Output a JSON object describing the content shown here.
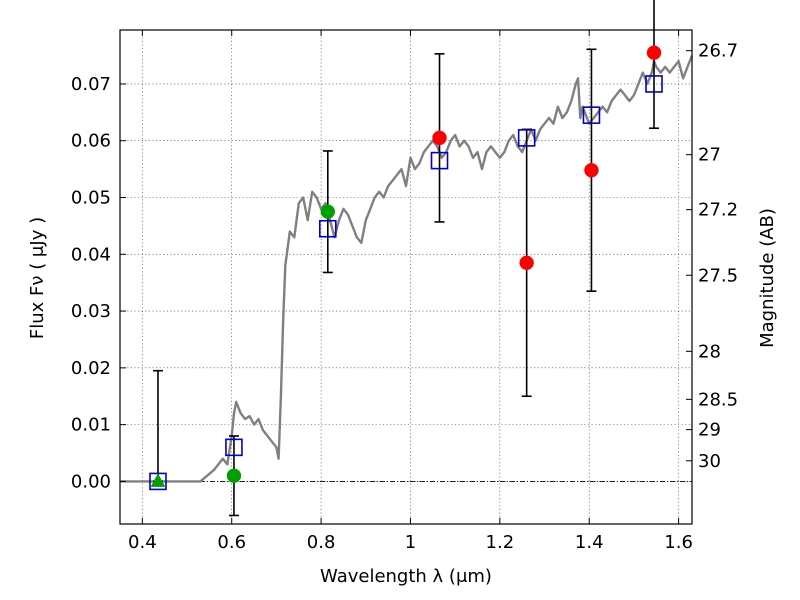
{
  "chart_data": {
    "type": "scatter",
    "title": "",
    "xlabel": "Wavelength  λ (μm)",
    "ylabel": "Flux  Fν  ( μJy )",
    "y2label": "Magnitude (AB)",
    "xlim": [
      0.35,
      1.63
    ],
    "ylim": [
      -0.0075,
      0.0795
    ],
    "grid": true,
    "x_ticks": [
      {
        "value": 0.4,
        "label": "0.4"
      },
      {
        "value": 0.6,
        "label": "0.6"
      },
      {
        "value": 0.8,
        "label": "0.8"
      },
      {
        "value": 1.0,
        "label": "1"
      },
      {
        "value": 1.2,
        "label": "1.2"
      },
      {
        "value": 1.4,
        "label": "1.4"
      },
      {
        "value": 1.6,
        "label": "1.6"
      }
    ],
    "y_ticks": [
      {
        "value": 0.0,
        "label": "0.00"
      },
      {
        "value": 0.01,
        "label": "0.01"
      },
      {
        "value": 0.02,
        "label": "0.02"
      },
      {
        "value": 0.03,
        "label": "0.03"
      },
      {
        "value": 0.04,
        "label": "0.04"
      },
      {
        "value": 0.05,
        "label": "0.05"
      },
      {
        "value": 0.06,
        "label": "0.06"
      },
      {
        "value": 0.07,
        "label": "0.07"
      }
    ],
    "y2_ticks": [
      {
        "value": 26.7,
        "label": "26.7"
      },
      {
        "value": 27.0,
        "label": "27"
      },
      {
        "value": 27.2,
        "label": "27.2"
      },
      {
        "value": 27.5,
        "label": "27.5"
      },
      {
        "value": 28.0,
        "label": "28"
      },
      {
        "value": 28.5,
        "label": "28.5"
      },
      {
        "value": 29.0,
        "label": "29"
      },
      {
        "value": 30.0,
        "label": "30"
      }
    ],
    "colors": {
      "model": "#808080",
      "observed": "#ff0000",
      "detection": "#00a000",
      "model_photometry": "#0000cc",
      "error_bar": "#000000"
    },
    "series": [
      {
        "kind": "line",
        "role": "model",
        "x": [
          0.35,
          0.53,
          0.56,
          0.58,
          0.59,
          0.6,
          0.605,
          0.61,
          0.615,
          0.62,
          0.63,
          0.64,
          0.65,
          0.66,
          0.67,
          0.68,
          0.69,
          0.7,
          0.705,
          0.71,
          0.715,
          0.72,
          0.73,
          0.74,
          0.75,
          0.76,
          0.77,
          0.78,
          0.79,
          0.8,
          0.81,
          0.82,
          0.83,
          0.84,
          0.85,
          0.86,
          0.87,
          0.88,
          0.89,
          0.9,
          0.91,
          0.92,
          0.93,
          0.94,
          0.95,
          0.96,
          0.97,
          0.98,
          0.99,
          1.0,
          1.01,
          1.02,
          1.03,
          1.04,
          1.05,
          1.06,
          1.07,
          1.08,
          1.09,
          1.1,
          1.11,
          1.12,
          1.13,
          1.14,
          1.15,
          1.16,
          1.17,
          1.18,
          1.19,
          1.2,
          1.21,
          1.22,
          1.23,
          1.24,
          1.25,
          1.26,
          1.27,
          1.28,
          1.29,
          1.3,
          1.31,
          1.32,
          1.33,
          1.34,
          1.35,
          1.36,
          1.37,
          1.375,
          1.38,
          1.385,
          1.39,
          1.4,
          1.41,
          1.42,
          1.43,
          1.44,
          1.45,
          1.46,
          1.47,
          1.48,
          1.49,
          1.5,
          1.51,
          1.52,
          1.53,
          1.54,
          1.545,
          1.55,
          1.56,
          1.57,
          1.58,
          1.59,
          1.6,
          1.61,
          1.62,
          1.63
        ],
        "y": [
          0.0,
          0.0,
          0.002,
          0.004,
          0.003,
          0.008,
          0.012,
          0.014,
          0.013,
          0.012,
          0.011,
          0.0115,
          0.01,
          0.011,
          0.009,
          0.008,
          0.007,
          0.006,
          0.004,
          0.015,
          0.028,
          0.038,
          0.044,
          0.043,
          0.049,
          0.05,
          0.046,
          0.051,
          0.05,
          0.048,
          0.049,
          0.046,
          0.043,
          0.046,
          0.048,
          0.047,
          0.045,
          0.043,
          0.042,
          0.046,
          0.048,
          0.05,
          0.051,
          0.05,
          0.052,
          0.053,
          0.054,
          0.055,
          0.052,
          0.057,
          0.055,
          0.056,
          0.058,
          0.059,
          0.06,
          0.059,
          0.057,
          0.058,
          0.06,
          0.061,
          0.059,
          0.06,
          0.059,
          0.057,
          0.058,
          0.055,
          0.058,
          0.059,
          0.058,
          0.057,
          0.058,
          0.06,
          0.061,
          0.059,
          0.058,
          0.06,
          0.062,
          0.06,
          0.062,
          0.063,
          0.064,
          0.063,
          0.066,
          0.064,
          0.065,
          0.067,
          0.07,
          0.071,
          0.064,
          0.066,
          0.065,
          0.063,
          0.064,
          0.065,
          0.066,
          0.065,
          0.067,
          0.068,
          0.069,
          0.068,
          0.067,
          0.068,
          0.07,
          0.072,
          0.07,
          0.072,
          0.074,
          0.073,
          0.072,
          0.073,
          0.072,
          0.073,
          0.074,
          0.071,
          0.073,
          0.075
        ]
      },
      {
        "kind": "scatter",
        "role": "model_photometry",
        "marker": "open-square",
        "x": [
          0.435,
          0.605,
          0.815,
          1.065,
          1.26,
          1.405,
          1.545
        ],
        "y": [
          0.0,
          0.006,
          0.0445,
          0.0565,
          0.0605,
          0.0645,
          0.07
        ]
      },
      {
        "kind": "scatter",
        "role": "observed",
        "marker": "circle",
        "x": [
          1.065,
          1.26,
          1.405,
          1.545
        ],
        "y": [
          0.0605,
          0.0385,
          0.0548,
          0.0755
        ],
        "yerr": [
          0.0148,
          0.0235,
          0.0213,
          0.0133
        ]
      },
      {
        "kind": "scatter",
        "role": "detection",
        "marker": "circle",
        "x": [
          0.605,
          0.815
        ],
        "y": [
          0.001,
          0.0475
        ],
        "yerr": [
          0.007,
          0.0107
        ]
      },
      {
        "kind": "scatter",
        "role": "detection",
        "marker": "triangle",
        "x": [
          0.435
        ],
        "y": [
          0.0
        ],
        "yerr_upper": [
          0.0195
        ],
        "yerr_lower": [
          0.0
        ]
      }
    ]
  }
}
